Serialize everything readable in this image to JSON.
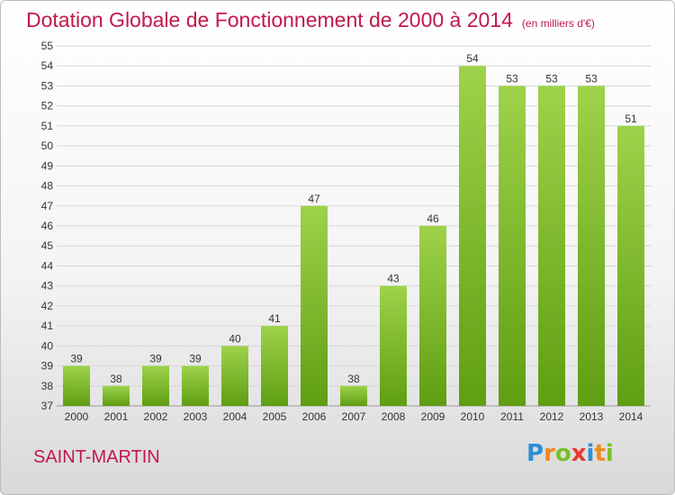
{
  "header": {
    "title": "Dotation Globale de Fonctionnement de 2000 à 2014",
    "subtitle": "(en milliers d'€)"
  },
  "footer": {
    "commune": "SAINT-MARTIN",
    "logo_text": "Proxiti",
    "logo_letters": [
      {
        "ch": "P",
        "color": "#2c8fd6"
      },
      {
        "ch": "r",
        "color": "#f08a1c"
      },
      {
        "ch": "o",
        "color": "#7bbf2a"
      },
      {
        "ch": "x",
        "color": "#e53935"
      },
      {
        "ch": "i",
        "color": "#2c8fd6"
      },
      {
        "ch": "t",
        "color": "#f08a1c"
      },
      {
        "ch": "i",
        "color": "#7bbf2a"
      }
    ]
  },
  "colors": {
    "bar_top": "#9ed24a",
    "bar_bottom": "#5f9e12",
    "grid": "#d8d8d8",
    "axis_text": "#333333",
    "accent": "#c2184b"
  },
  "chart_data": {
    "type": "bar",
    "title": "Dotation Globale de Fonctionnement de 2000 à 2014",
    "subtitle": "(en milliers d'€)",
    "categories": [
      "2000",
      "2001",
      "2002",
      "2003",
      "2004",
      "2005",
      "2006",
      "2007",
      "2008",
      "2009",
      "2010",
      "2011",
      "2012",
      "2013",
      "2014"
    ],
    "values": [
      39,
      38,
      39,
      39,
      40,
      41,
      47,
      38,
      43,
      46,
      54,
      53,
      53,
      53,
      51
    ],
    "ylim": [
      37,
      55
    ],
    "yticks": [
      37,
      38,
      39,
      40,
      41,
      42,
      43,
      44,
      45,
      46,
      47,
      48,
      49,
      50,
      51,
      52,
      53,
      54,
      55
    ],
    "grid": true,
    "legend": "none"
  }
}
